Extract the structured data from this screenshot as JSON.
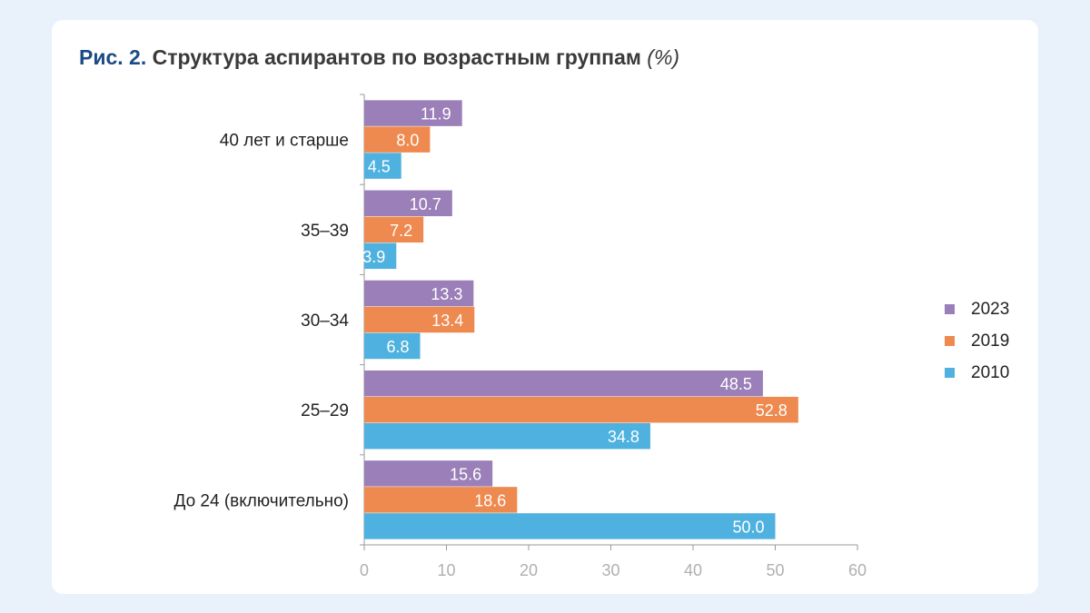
{
  "title": {
    "figure": "Рис. 2.",
    "text": "Структура аспирантов по возрастным группам",
    "unit": "(%)"
  },
  "colors": {
    "background": "#e9f1fb",
    "card": "#ffffff",
    "figure_label": "#1b4b86",
    "axis": "#9a9a9a",
    "tick_label": "#b0b0b0"
  },
  "chart_data": {
    "type": "bar",
    "orientation": "horizontal",
    "categories": [
      "40 лет и старше",
      "35–39",
      "30–34",
      "25–29",
      "До 24 (включительно)"
    ],
    "series": [
      {
        "name": "2023",
        "color": "#9b7fb8",
        "values": [
          11.9,
          10.7,
          13.3,
          48.5,
          15.6
        ]
      },
      {
        "name": "2019",
        "color": "#ee8a4f",
        "values": [
          8.0,
          7.2,
          13.4,
          52.8,
          18.6
        ]
      },
      {
        "name": "2010",
        "color": "#4fb1df",
        "values": [
          4.5,
          3.9,
          6.8,
          34.8,
          50.0
        ]
      }
    ],
    "xlim": [
      0,
      60
    ],
    "xticks": [
      0,
      10,
      20,
      30,
      40,
      50,
      60
    ],
    "data_labels": true,
    "legend_position": "right",
    "grid": false
  }
}
